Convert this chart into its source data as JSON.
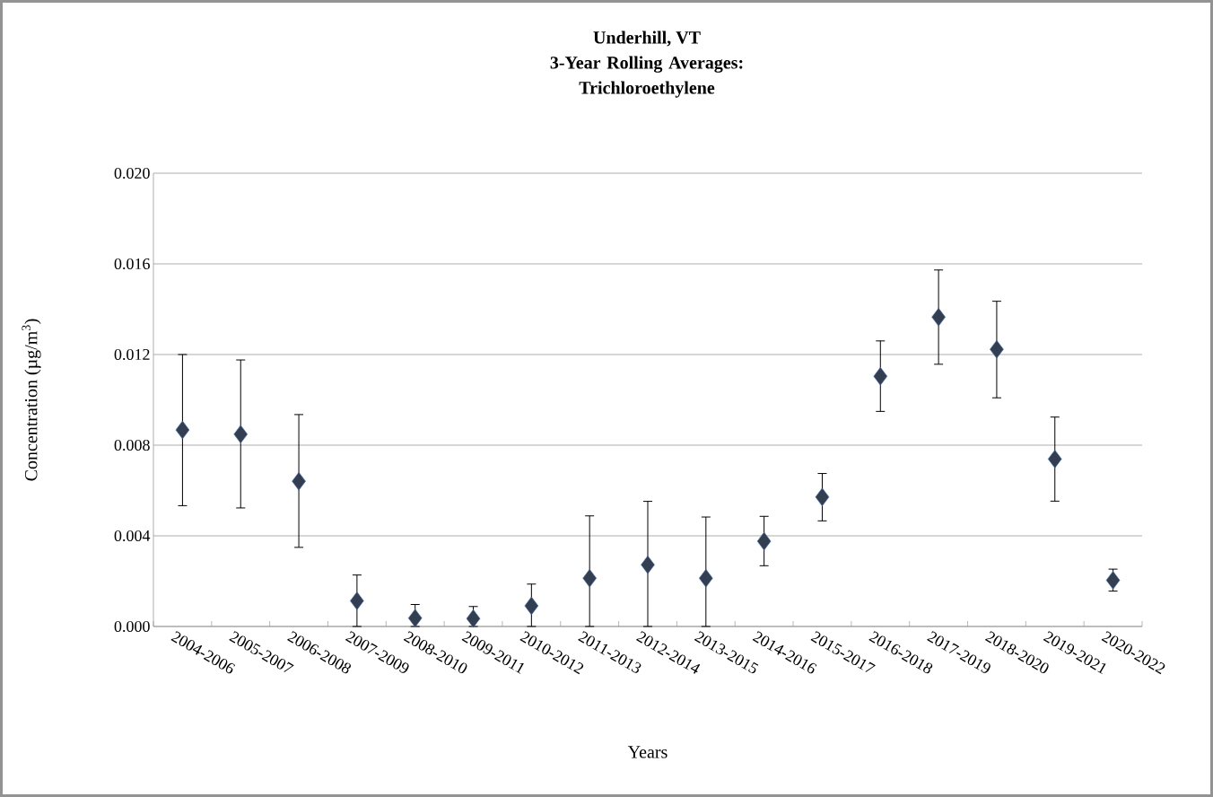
{
  "chart_data": {
    "type": "scatter",
    "title": "Underhill, VT",
    "subtitle": "3-Year Rolling Averages: Trichloroethylene",
    "xlabel": "Years",
    "ylabel": "Concentration (µg/m$^{3}$)",
    "categories": [
      "2004-2006",
      "2005-2007",
      "2006-2008",
      "2007-2009",
      "2008-2010",
      "2009-2011",
      "2010-2012",
      "2011-2013",
      "2012-2014",
      "2013-2015",
      "2014-2016",
      "2015-2017",
      "2016-2018",
      "2017-2019",
      "2018-2020",
      "2019-2021",
      "2020-2022"
    ],
    "values": [
      0.00867,
      0.00848,
      0.00641,
      0.00113,
      0.00037,
      0.00035,
      0.00091,
      0.00213,
      0.00272,
      0.00213,
      0.00376,
      0.00571,
      0.01104,
      0.01365,
      0.01223,
      0.00739,
      0.00204
    ],
    "errors": [
      [
        0.00533,
        0.012
      ],
      [
        0.00523,
        0.01176
      ],
      [
        0.00349,
        0.00935
      ],
      [
        0.0,
        0.00227
      ],
      [
        0.0,
        0.00097
      ],
      [
        0.0,
        0.00088
      ],
      [
        0.0,
        0.00187
      ],
      [
        0.0,
        0.00488
      ],
      [
        0.0,
        0.00552
      ],
      [
        0.0,
        0.00483
      ],
      [
        0.00268,
        0.00486
      ],
      [
        0.00466,
        0.00675
      ],
      [
        0.00949,
        0.0126
      ],
      [
        0.01157,
        0.01573
      ],
      [
        0.01009,
        0.01435
      ],
      [
        0.00553,
        0.00924
      ],
      [
        0.00156,
        0.00253
      ]
    ],
    "color": "#333f50",
    "marker": "diamond",
    "grid": "y",
    "ylim": [
      0,
      0.02
    ],
    "yticks": [
      {
        "value": 0,
        "label": "0.000"
      },
      {
        "value": 0.004,
        "label": "0.004"
      },
      {
        "value": 0.008,
        "label": "0.008"
      },
      {
        "value": 0.012,
        "label": "0.012"
      },
      {
        "value": 0.016,
        "label": "0.016"
      },
      {
        "value": 0.02,
        "label": "0.020"
      }
    ]
  }
}
